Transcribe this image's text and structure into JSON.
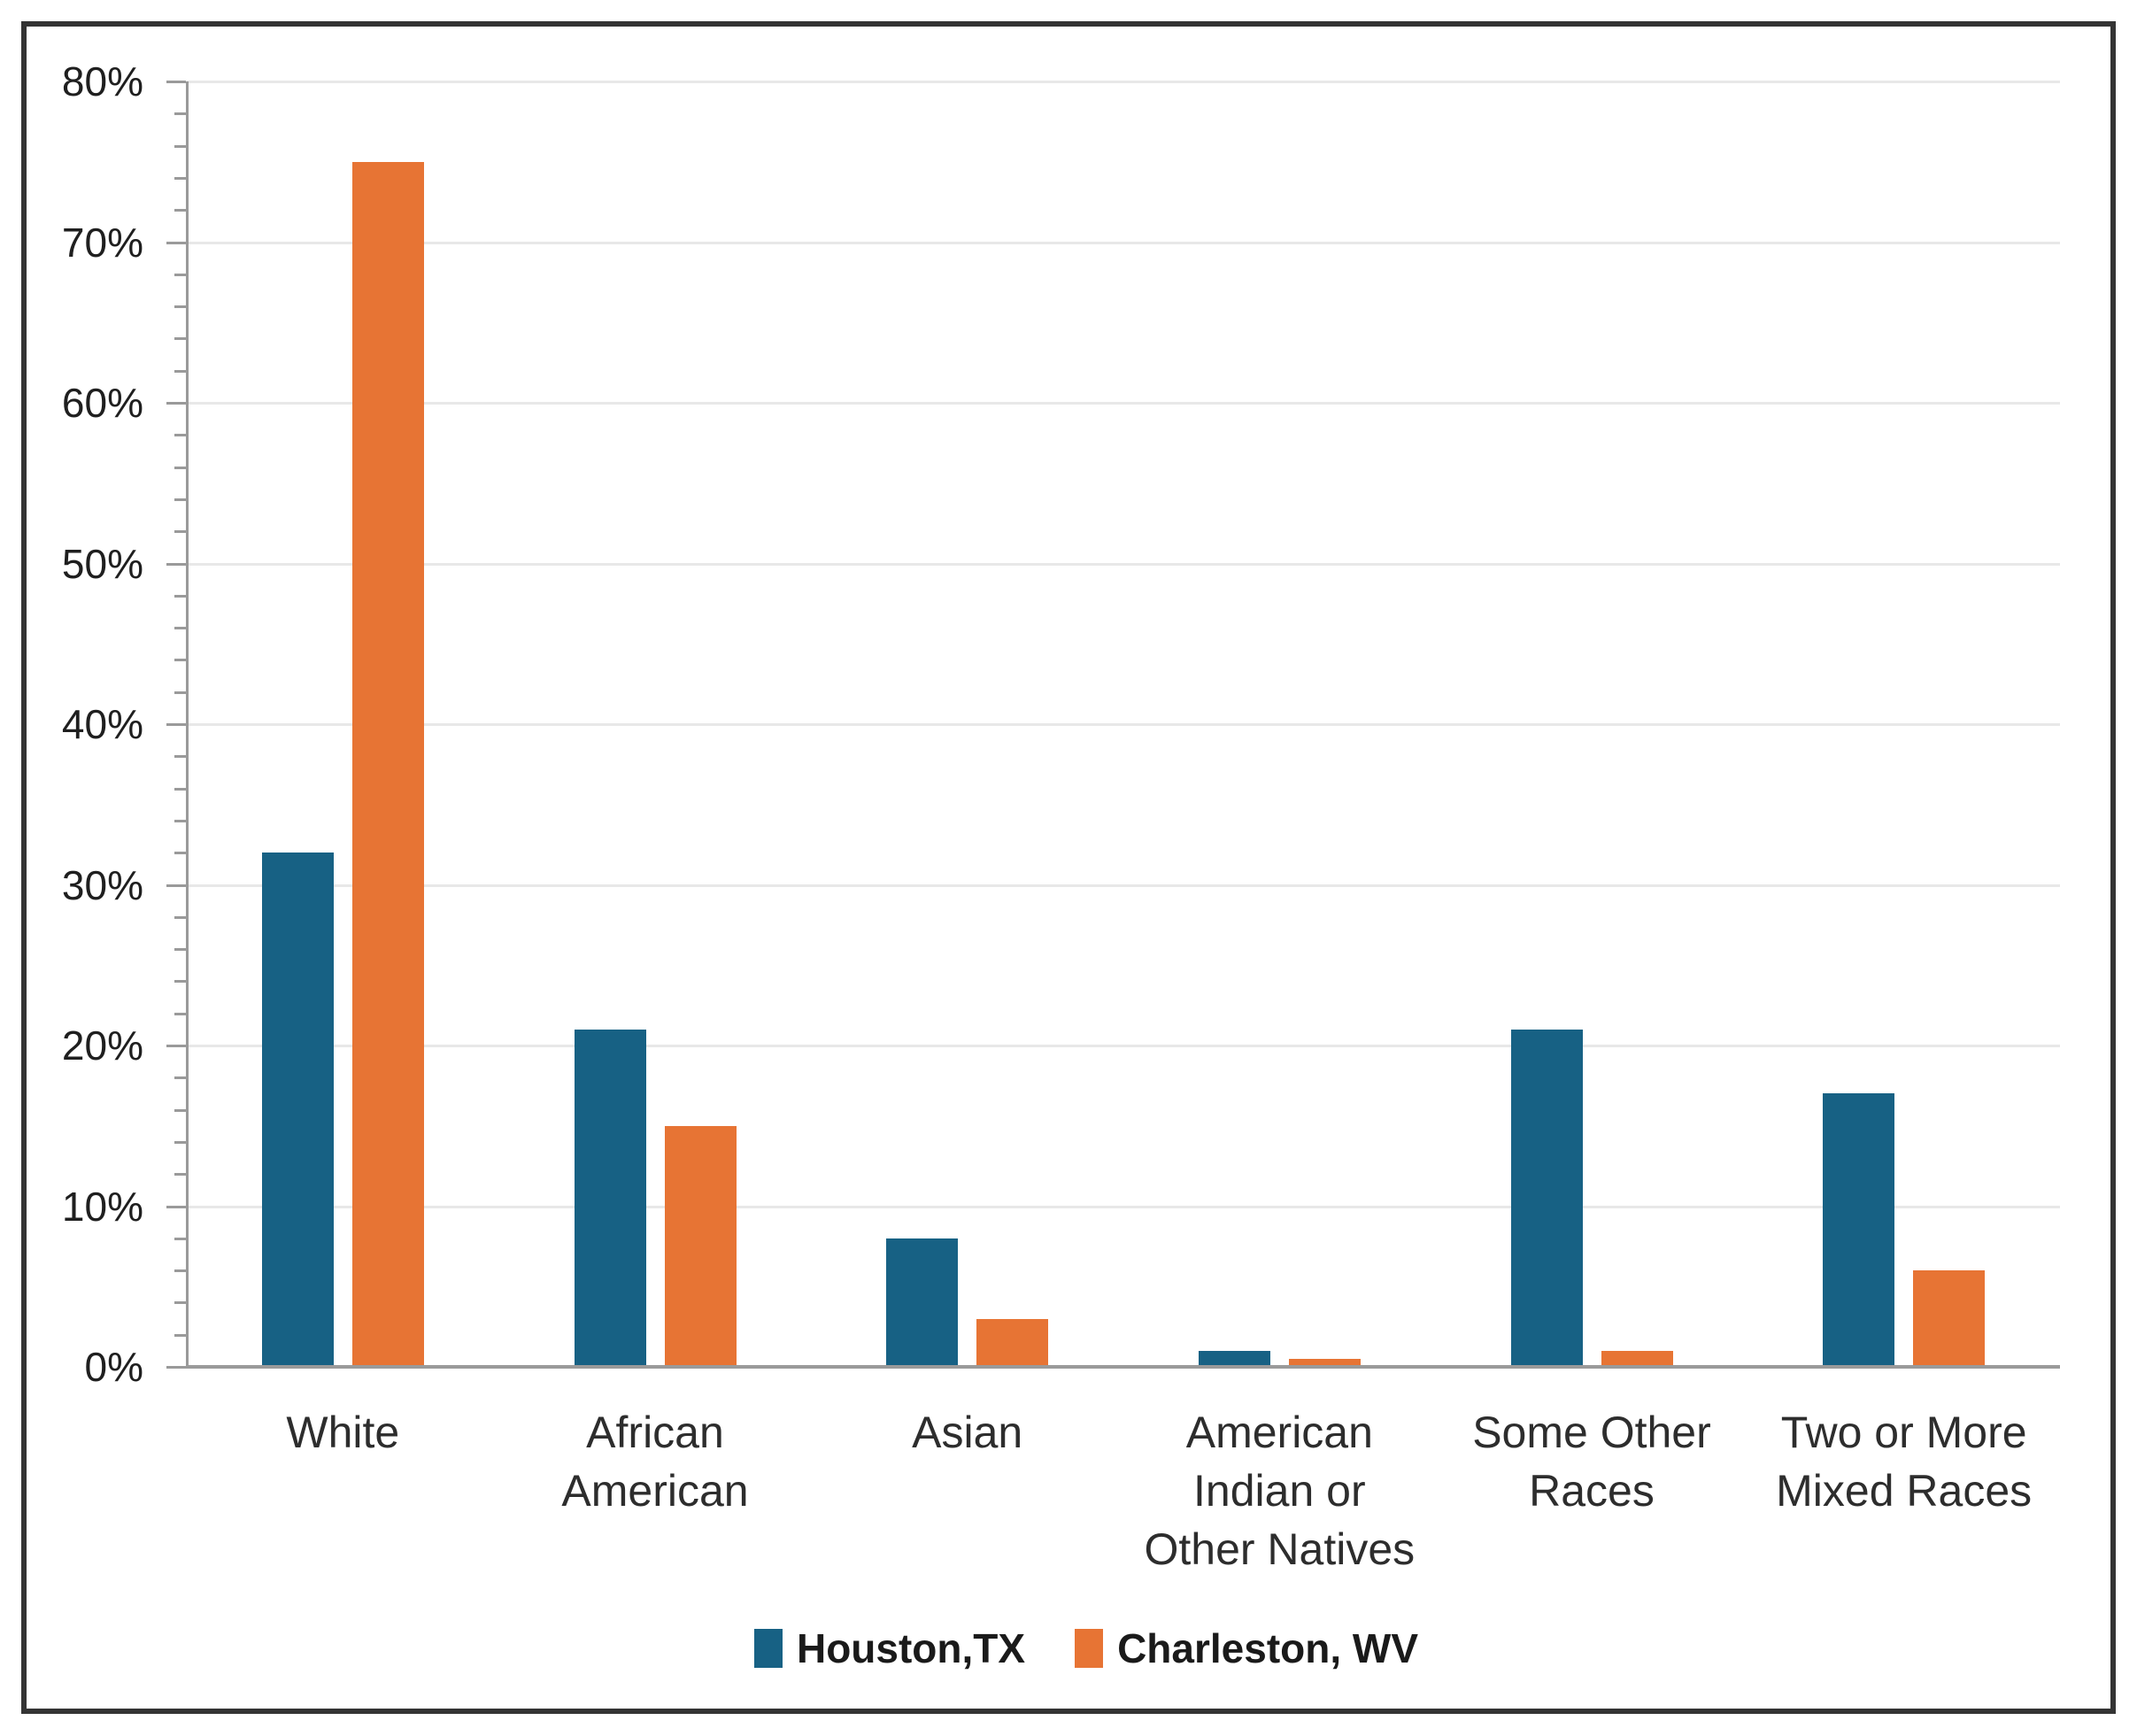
{
  "chart_data": {
    "type": "bar",
    "title": "",
    "xlabel": "",
    "ylabel": "",
    "categories": [
      "White",
      "African American",
      "Asian",
      "American Indian or Other Natives",
      "Some Other Races",
      "Two or More Mixed Races"
    ],
    "categories_wrapped": [
      [
        "White"
      ],
      [
        "African",
        "American"
      ],
      [
        "Asian"
      ],
      [
        "American",
        "Indian or",
        "Other Natives"
      ],
      [
        "Some Other",
        "Races"
      ],
      [
        "Two or More",
        "Mixed Races"
      ]
    ],
    "series": [
      {
        "name": "Houston,TX",
        "color": "#176184",
        "values": [
          32,
          21,
          8,
          1,
          21,
          17
        ]
      },
      {
        "name": "Charleston, WV",
        "color": "#E77434",
        "values": [
          75,
          15,
          3,
          0.5,
          1,
          6
        ]
      }
    ],
    "y_axis": {
      "min": 0,
      "max": 80,
      "major_step": 10,
      "minor_step": 2,
      "unit": "%"
    },
    "y_tick_labels": [
      "0%",
      "10%",
      "20%",
      "30%",
      "40%",
      "50%",
      "60%",
      "70%",
      "80%"
    ],
    "grid": true,
    "legend_position": "bottom"
  }
}
